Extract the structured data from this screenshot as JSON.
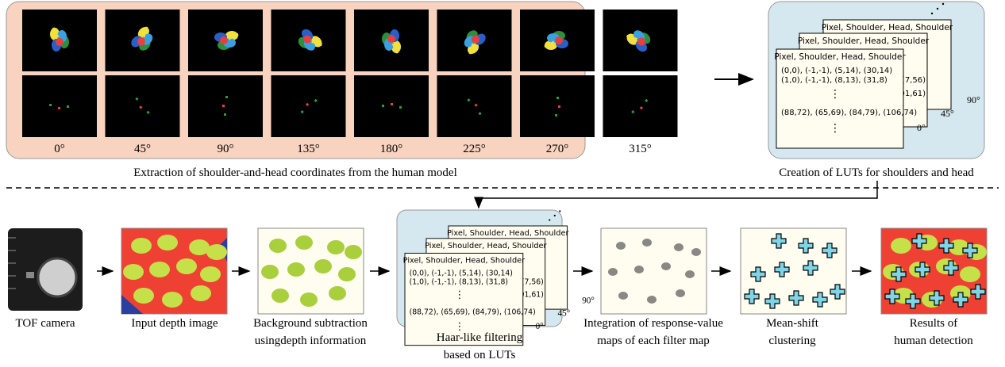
{
  "top_panel": {
    "angles": [
      "0°",
      "45°",
      "90°",
      "135°",
      "180°",
      "225°",
      "270°",
      "315°"
    ],
    "caption": "Extraction of shoulder-and-head coordinates from the human model"
  },
  "lut": {
    "header": "Pixel, Shoulder, Head, Shoulder",
    "rows": [
      "(0,0), (-1,-1), (5,14), (30,14)",
      "(1,0), (-1,-1), (8,13), (31,8)",
      "⋮",
      "(88,72), (65,69), (84,79), (106,74)",
      "⋮"
    ],
    "back_fragments": [
      "(7,56)",
      "(01,61)"
    ],
    "card_angles": [
      "0°",
      "45°",
      "90°"
    ],
    "caption": "Creation of LUTs for shoulders and head"
  },
  "pipeline": {
    "steps": [
      {
        "label": [
          "TOF camera"
        ]
      },
      {
        "label": [
          "Input depth image"
        ]
      },
      {
        "label": [
          "Background subtraction",
          "usingdepth information"
        ]
      },
      {
        "label": [
          "Haar-like filtering",
          "based on LUTs"
        ]
      },
      {
        "label": [
          "Integration of response-value",
          "maps of each filter map"
        ]
      },
      {
        "label": [
          "Mean-shift",
          "clustering"
        ]
      },
      {
        "label": [
          "Results of",
          "human detection"
        ]
      }
    ]
  }
}
